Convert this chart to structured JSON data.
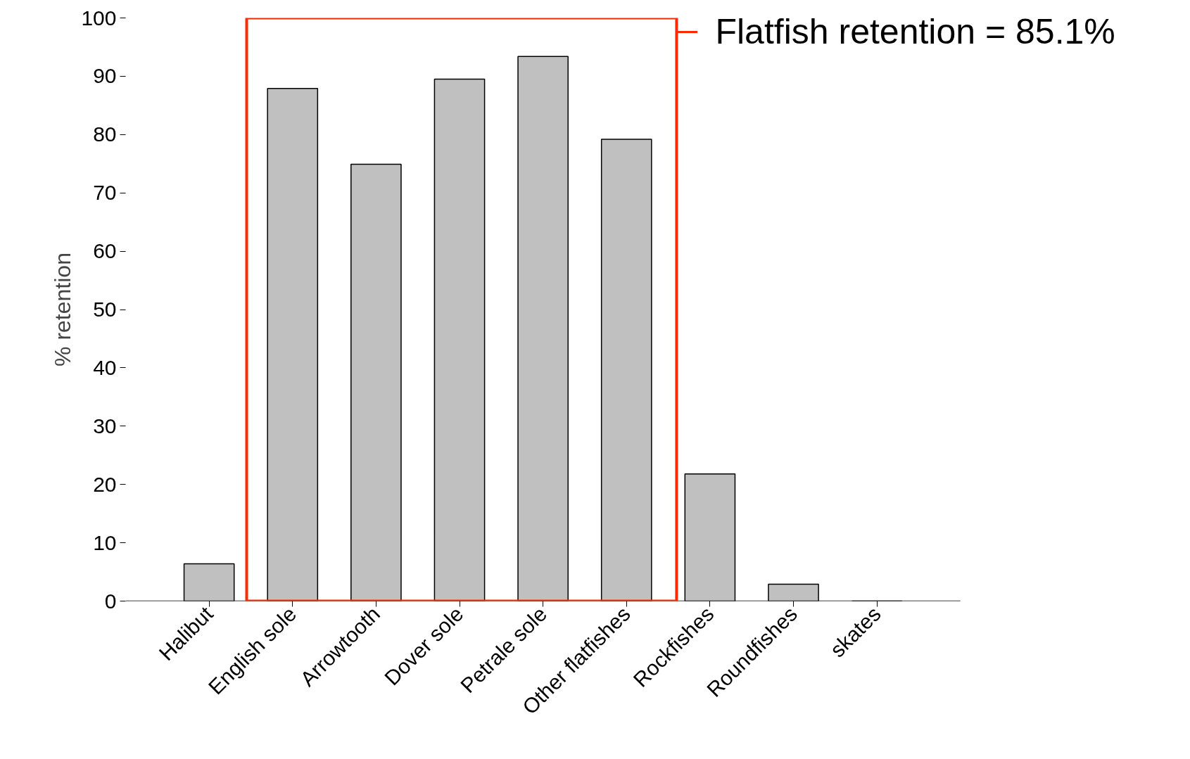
{
  "chart_data": {
    "type": "bar",
    "ylabel": "% retention",
    "categories": [
      "Halibut",
      "English sole",
      "Arrowtooth",
      "Dover sole",
      "Petrale sole",
      "Other flatfishes",
      "Rockfishes",
      "Roundfishes",
      "skates"
    ],
    "values": [
      6.4,
      87.9,
      74.9,
      89.5,
      93.4,
      79.2,
      21.8,
      2.9,
      0
    ],
    "color": "#c0c0c0",
    "ylim": [
      0,
      100
    ],
    "yticks": [
      0,
      10,
      20,
      30,
      40,
      50,
      60,
      70,
      80,
      90,
      100
    ],
    "grid": false,
    "annotations": [
      "Flatfish retention = 85.1%"
    ]
  }
}
